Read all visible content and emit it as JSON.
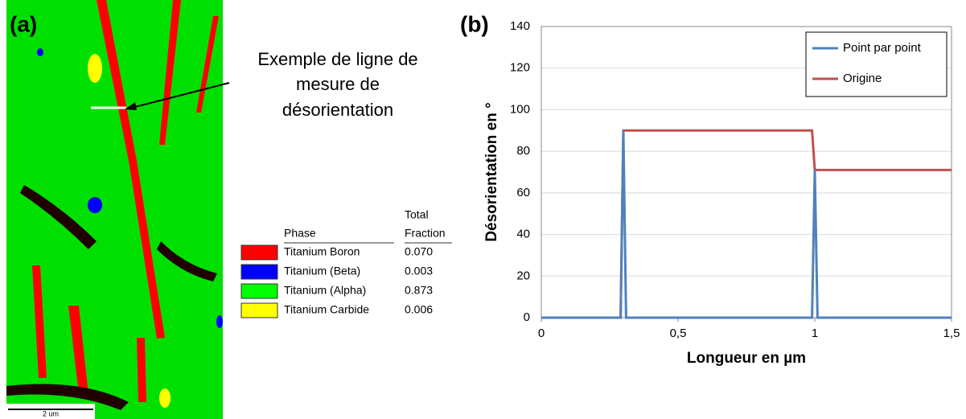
{
  "panel_a": {
    "label": "(a)",
    "annotation": [
      "Exemple de ligne de",
      "mesure de",
      "désorientation"
    ],
    "scale_bar": "2 um",
    "legend": {
      "phase_header": "Phase",
      "fraction_header": [
        "Total",
        "Fraction"
      ],
      "rows": [
        {
          "color": "#ff0000",
          "phase": "Titanium Boron",
          "fraction": "0.070"
        },
        {
          "color": "#0000ff",
          "phase": "Titanium (Beta)",
          "fraction": "0.003"
        },
        {
          "color": "#00ff00",
          "phase": "Titanium (Alpha)",
          "fraction": "0.873"
        },
        {
          "color": "#ffff00",
          "phase": "Titanium Carbide",
          "fraction": "0.006"
        }
      ]
    }
  },
  "chart_data": {
    "type": "line",
    "panel_label": "(b)",
    "x_label": "Longueur en µm",
    "y_label": "Désorientation en °",
    "x": [
      0,
      0.29,
      0.3,
      0.31,
      0.99,
      1.0,
      1.01,
      1.5
    ],
    "series": [
      {
        "name": "Point par point",
        "color": "#4f81bd",
        "values": [
          0,
          0,
          90,
          0,
          0,
          71,
          0,
          0
        ]
      },
      {
        "name": "Origine",
        "color": "#c0504d",
        "values": [
          0,
          0,
          90,
          90,
          90,
          71,
          71,
          71
        ]
      }
    ],
    "xlim": [
      0,
      1.5
    ],
    "xticks": [
      0,
      {
        "value": 0.5,
        "label": "0,5"
      },
      1,
      {
        "value": 1.5,
        "label": "1,5"
      }
    ],
    "ylim": [
      0,
      140
    ],
    "yticks": [
      0,
      20,
      40,
      60,
      80,
      100,
      120,
      140
    ],
    "grid": true,
    "legend": "upper right"
  }
}
